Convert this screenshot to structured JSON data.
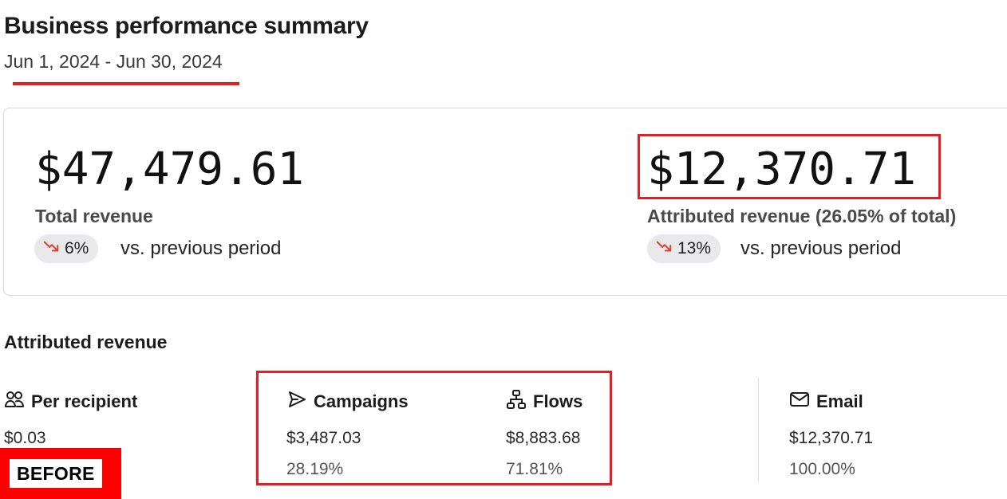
{
  "header": {
    "title": "Business performance summary",
    "date_range": "Jun 1, 2024 - Jun 30, 2024"
  },
  "summary": {
    "total": {
      "value": "$47,479.61",
      "label": "Total revenue",
      "change": "6%",
      "direction": "down",
      "comparison": "vs. previous period"
    },
    "attributed": {
      "value": "$12,370.71",
      "label": "Attributed revenue (26.05% of total)",
      "change": "13%",
      "direction": "down",
      "comparison": "vs. previous period"
    }
  },
  "attributed_section": {
    "title": "Attributed revenue",
    "columns": [
      {
        "icon": "people-icon",
        "label": "Per recipient",
        "value": "$0.03",
        "percent": ""
      },
      {
        "icon": "send-icon",
        "label": "Campaigns",
        "value": "$3,487.03",
        "percent": "28.19%"
      },
      {
        "icon": "flow-icon",
        "label": "Flows",
        "value": "$8,883.68",
        "percent": "71.81%"
      },
      {
        "icon": "mail-icon",
        "label": "Email",
        "value": "$12,370.71",
        "percent": "100.00%"
      }
    ]
  },
  "tag": {
    "label": "BEFORE"
  },
  "colors": {
    "annotation_red": "#e31e24",
    "trend_down": "#e0402f",
    "pill_bg": "#e9e9ec"
  }
}
